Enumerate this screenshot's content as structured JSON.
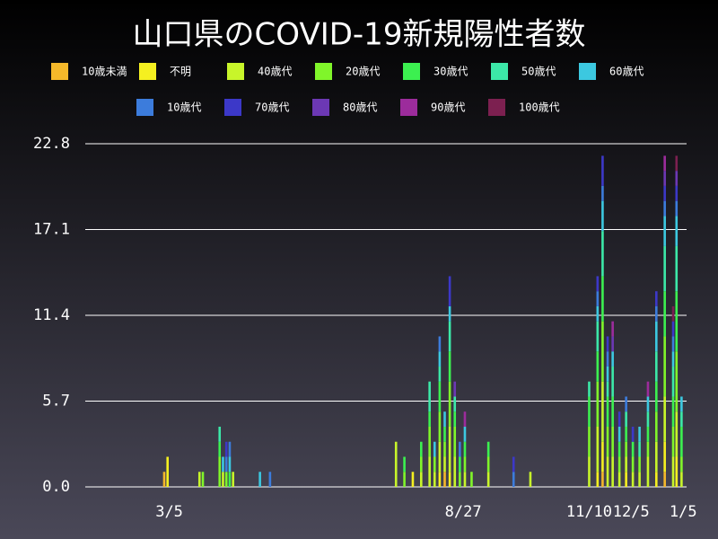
{
  "chart_data": {
    "type": "bar",
    "stacked": true,
    "title": "山口県のCOVID-19新規陽性者数",
    "x": [
      47,
      49,
      68,
      70,
      80,
      82,
      84,
      86,
      88,
      104,
      110,
      185,
      190,
      195,
      200,
      205,
      208,
      211,
      214,
      217,
      220,
      223,
      226,
      230,
      240,
      255,
      265,
      300,
      305,
      308,
      311,
      314,
      318,
      322,
      326,
      330,
      335,
      340,
      345,
      350,
      352,
      355
    ],
    "xlim": [
      0,
      358
    ],
    "xticks": [
      {
        "value": 50,
        "label": "3/5"
      },
      {
        "value": 225,
        "label": "8/27"
      },
      {
        "value": 300,
        "label": "11/10"
      },
      {
        "value": 325,
        "label": "12/5"
      },
      {
        "value": 356,
        "label": "1/5"
      }
    ],
    "ylim": [
      0,
      22.8
    ],
    "yticks": [
      {
        "value": 0,
        "label": "0.0"
      },
      5.7,
      11.4,
      17.1,
      22.8
    ],
    "grid": true,
    "series": [
      {
        "name": "10歳未満",
        "color": "#f5b82a",
        "values": [
          1,
          0,
          0,
          0,
          0,
          0,
          0,
          0,
          0,
          0,
          0,
          0,
          0,
          0,
          0,
          0,
          0,
          0,
          1,
          0,
          0,
          0,
          0,
          0,
          0,
          0,
          0,
          0,
          0,
          1,
          0,
          0,
          0,
          0,
          0,
          0,
          0,
          0,
          1,
          0,
          0,
          0
        ]
      },
      {
        "name": "不明",
        "color": "#f5f020",
        "values": [
          0,
          2,
          0,
          0,
          0,
          0,
          0,
          0,
          0,
          0,
          0,
          0,
          0,
          1,
          0,
          0,
          0,
          1,
          0,
          1,
          0,
          0,
          0,
          0,
          0,
          0,
          0,
          0,
          1,
          2,
          0,
          0,
          0,
          1,
          0,
          0,
          0,
          1,
          2,
          0,
          2,
          0
        ]
      },
      {
        "name": "40歳代",
        "color": "#c8f52a",
        "values": [
          0,
          0,
          1,
          0,
          0,
          1,
          0,
          0,
          1,
          0,
          0,
          3,
          0,
          0,
          1,
          2,
          1,
          2,
          1,
          3,
          2,
          0,
          1,
          0,
          1,
          0,
          1,
          2,
          3,
          4,
          2,
          2,
          1,
          1,
          1,
          1,
          2,
          2,
          3,
          2,
          3,
          1
        ]
      },
      {
        "name": "20歳代",
        "color": "#80f52a",
        "values": [
          0,
          0,
          0,
          1,
          2,
          0,
          1,
          0,
          0,
          0,
          0,
          0,
          1,
          0,
          1,
          2,
          1,
          2,
          1,
          3,
          2,
          1,
          1,
          1,
          1,
          0,
          0,
          2,
          3,
          4,
          2,
          2,
          1,
          1,
          1,
          1,
          1,
          2,
          4,
          2,
          4,
          1
        ]
      },
      {
        "name": "30歳代",
        "color": "#3cf050",
        "values": [
          0,
          0,
          0,
          0,
          1,
          0,
          0,
          1,
          0,
          0,
          0,
          0,
          1,
          0,
          1,
          1,
          0,
          2,
          1,
          2,
          1,
          1,
          1,
          0,
          1,
          0,
          0,
          2,
          2,
          3,
          2,
          2,
          1,
          1,
          1,
          0,
          1,
          2,
          3,
          2,
          4,
          2
        ]
      },
      {
        "name": "50歳代",
        "color": "#3ce8a8",
        "values": [
          0,
          0,
          0,
          0,
          1,
          0,
          0,
          0,
          0,
          0,
          0,
          0,
          0,
          0,
          0,
          2,
          0,
          1,
          0,
          2,
          1,
          0,
          0,
          0,
          0,
          0,
          0,
          1,
          2,
          3,
          1,
          2,
          0,
          1,
          0,
          1,
          1,
          2,
          3,
          2,
          3,
          1
        ]
      },
      {
        "name": "60歳代",
        "color": "#3cc8e0",
        "values": [
          0,
          0,
          0,
          0,
          0,
          1,
          0,
          1,
          0,
          1,
          0,
          0,
          0,
          0,
          0,
          0,
          1,
          1,
          1,
          1,
          0,
          0,
          1,
          0,
          0,
          0,
          0,
          0,
          1,
          2,
          1,
          1,
          1,
          0,
          0,
          1,
          1,
          2,
          2,
          1,
          2,
          1
        ]
      },
      {
        "name": "10歳代",
        "color": "#3c7cdc",
        "values": [
          0,
          0,
          0,
          0,
          0,
          0,
          1,
          1,
          0,
          0,
          1,
          0,
          0,
          0,
          0,
          0,
          0,
          1,
          0,
          0,
          0,
          1,
          0,
          0,
          0,
          1,
          0,
          0,
          1,
          1,
          1,
          0,
          0,
          1,
          0,
          0,
          0,
          1,
          1,
          1,
          1,
          0
        ]
      },
      {
        "name": "70歳代",
        "color": "#3c38c8",
        "values": [
          0,
          0,
          0,
          0,
          0,
          0,
          1,
          0,
          0,
          0,
          0,
          0,
          0,
          0,
          0,
          0,
          0,
          0,
          0,
          2,
          0,
          0,
          0,
          0,
          0,
          1,
          0,
          0,
          1,
          2,
          1,
          0,
          1,
          0,
          1,
          0,
          0,
          1,
          1,
          1,
          1,
          0
        ]
      },
      {
        "name": "80歳代",
        "color": "#6c38b4",
        "values": [
          0,
          0,
          0,
          0,
          0,
          0,
          0,
          0,
          0,
          0,
          0,
          0,
          0,
          0,
          0,
          0,
          0,
          0,
          0,
          0,
          1,
          0,
          0,
          0,
          0,
          0,
          0,
          0,
          0,
          0,
          0,
          1,
          0,
          0,
          0,
          0,
          0,
          0,
          1,
          0,
          1,
          0
        ]
      },
      {
        "name": "90歳代",
        "color": "#9c2c9c",
        "values": [
          0,
          0,
          0,
          0,
          0,
          0,
          0,
          0,
          0,
          0,
          0,
          0,
          0,
          0,
          0,
          0,
          0,
          0,
          0,
          0,
          0,
          0,
          1,
          0,
          0,
          0,
          0,
          0,
          0,
          0,
          0,
          1,
          0,
          0,
          0,
          0,
          1,
          0,
          1,
          0,
          0,
          0
        ]
      },
      {
        "name": "100歳代",
        "color": "#7c2050",
        "values": [
          0,
          0,
          0,
          0,
          0,
          0,
          0,
          0,
          0,
          0,
          0,
          0,
          0,
          0,
          0,
          0,
          0,
          0,
          0,
          0,
          0,
          0,
          0,
          0,
          0,
          0,
          0,
          0,
          0,
          0,
          0,
          0,
          0,
          0,
          0,
          0,
          0,
          0,
          0,
          1,
          1,
          0
        ]
      }
    ]
  }
}
